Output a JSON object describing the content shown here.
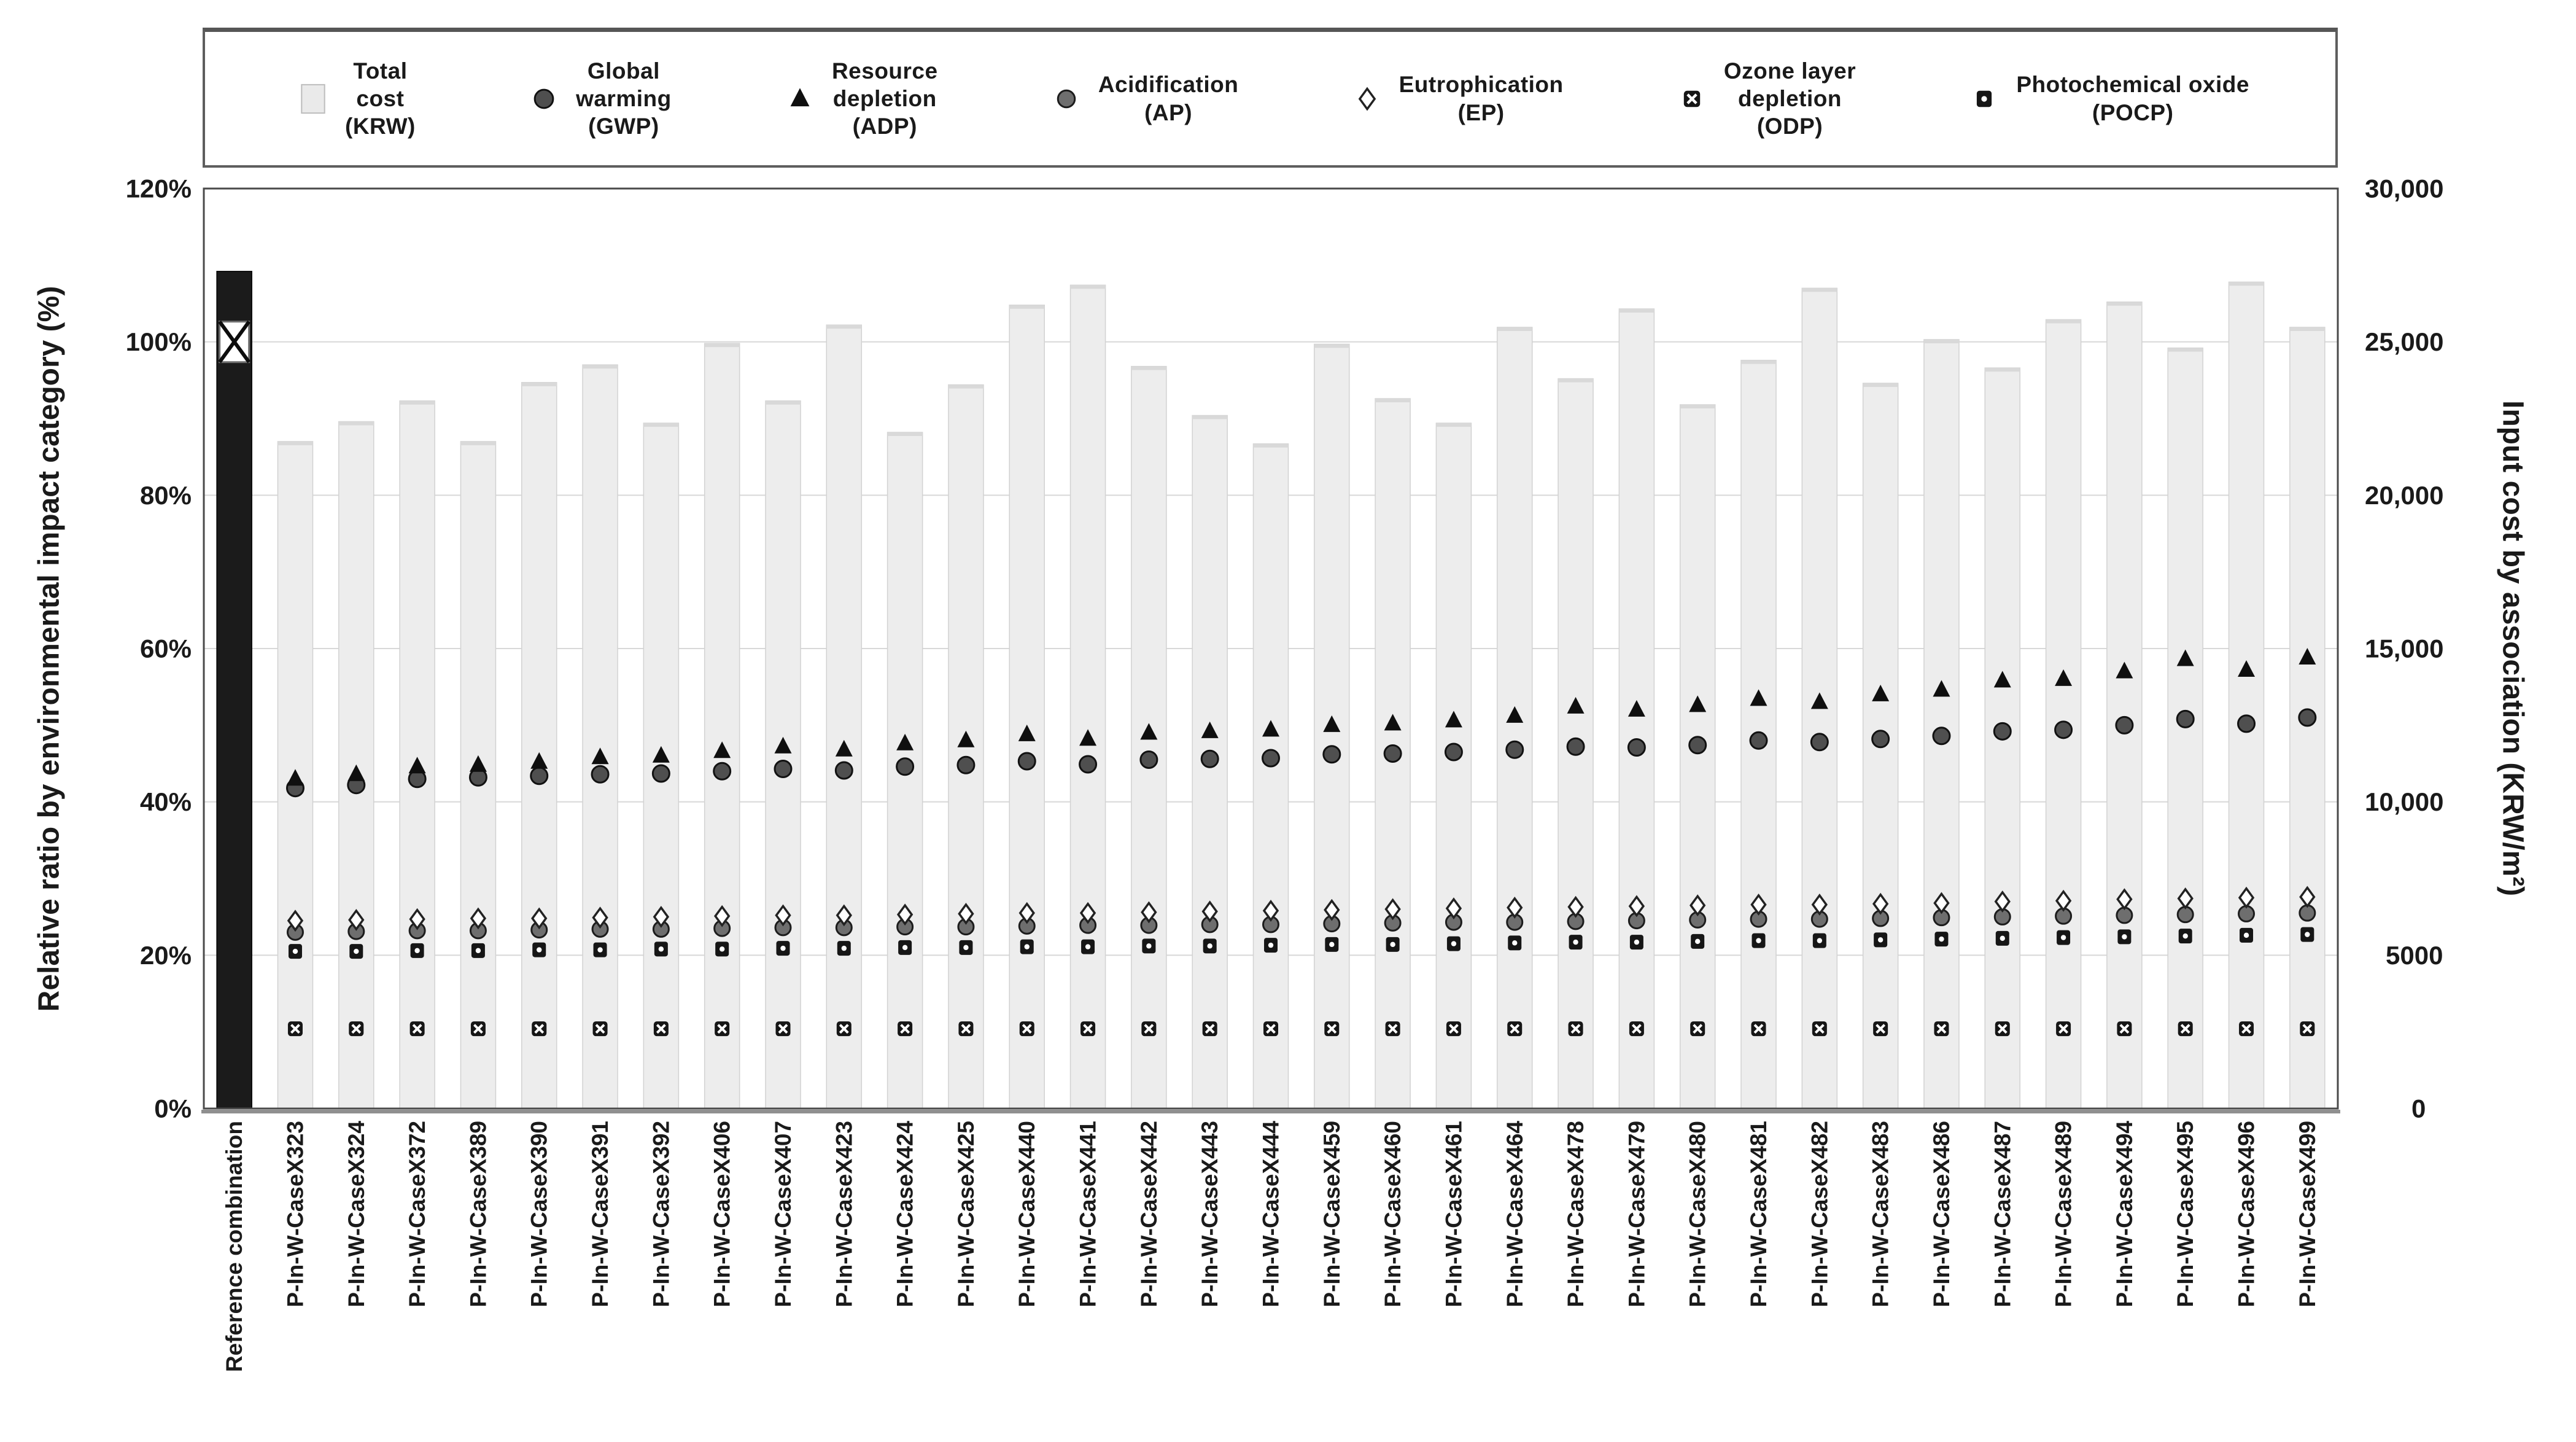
{
  "legend": {
    "items": [
      {
        "label": "Total\ncost\n(KRW)",
        "marker": "bar-swatch"
      },
      {
        "label": "Global\nwarming\n(GWP)",
        "marker": "gwp-circle"
      },
      {
        "label": "Resource\ndepletion\n(ADP)",
        "marker": "adp-triangle"
      },
      {
        "label": "Acidification\n(AP)",
        "marker": "ap-circle"
      },
      {
        "label": "Eutrophication\n(EP)",
        "marker": "ep-diamond"
      },
      {
        "label": "Ozone layer\ndepletion\n(ODP)",
        "marker": "odp-square-x"
      },
      {
        "label": "Photochemical oxide\n(POCP)",
        "marker": "pocp-square-dot"
      }
    ]
  },
  "chart_data": {
    "type": "bar",
    "subtype": "bar with overlaid scatter markers, dual axis",
    "left_axis": {
      "label": "Relative ratio by environmental impact category (%)",
      "ticks": [
        "0%",
        "20%",
        "40%",
        "60%",
        "80%",
        "100%",
        "120%"
      ],
      "tick_pcts": [
        0,
        20,
        40,
        60,
        80,
        100,
        120
      ],
      "range": [
        0,
        120
      ],
      "grid": true
    },
    "right_axis": {
      "label": "Input cost by association (KRW/m²)",
      "ticks": [
        "0",
        "5000",
        "10,000",
        "15,000",
        "20,000",
        "25,000",
        "30,000"
      ],
      "tick_pcts": [
        0,
        20,
        40,
        60,
        80,
        100,
        120
      ],
      "range": [
        0,
        30000
      ]
    },
    "categories": [
      "Reference combination",
      "P-In-W-CaseX323",
      "P-In-W-CaseX324",
      "P-In-W-CaseX372",
      "P-In-W-CaseX389",
      "P-In-W-CaseX390",
      "P-In-W-CaseX391",
      "P-In-W-CaseX392",
      "P-In-W-CaseX406",
      "P-In-W-CaseX407",
      "P-In-W-CaseX423",
      "P-In-W-CaseX424",
      "P-In-W-CaseX425",
      "P-In-W-CaseX440",
      "P-In-W-CaseX441",
      "P-In-W-CaseX442",
      "P-In-W-CaseX443",
      "P-In-W-CaseX444",
      "P-In-W-CaseX459",
      "P-In-W-CaseX460",
      "P-In-W-CaseX461",
      "P-In-W-CaseX464",
      "P-In-W-CaseX478",
      "P-In-W-CaseX479",
      "P-In-W-CaseX480",
      "P-In-W-CaseX481",
      "P-In-W-CaseX482",
      "P-In-W-CaseX483",
      "P-In-W-CaseX486",
      "P-In-W-CaseX487",
      "P-In-W-CaseX489",
      "P-In-W-CaseX494",
      "P-In-W-CaseX495",
      "P-In-W-CaseX496",
      "P-In-W-CaseX499"
    ],
    "series": [
      {
        "name": "Total cost (KRW)",
        "plot": "bar",
        "marker": "bar-swatch",
        "unit": "% of reference (left axis); right axis equivalent KRW/m² = % × 250",
        "values": [
          109.2,
          87,
          89.6,
          92.3,
          87,
          94.7,
          97,
          89.4,
          99.8,
          92.3,
          102.2,
          88.2,
          94.4,
          104.8,
          107.4,
          96.8,
          90.4,
          86.7,
          99.7,
          92.6,
          89.4,
          101.9,
          95.2,
          104.3,
          91.8,
          97.6,
          107,
          94.6,
          100.3,
          96.6,
          102.9,
          105.2,
          99.2,
          107.8,
          101.9
        ]
      },
      {
        "name": "Global warming (GWP)",
        "plot": "scatter",
        "marker": "gwp-circle",
        "unit": "%",
        "values": [
          100,
          41.8,
          42.2,
          43,
          43.2,
          43.4,
          43.6,
          43.7,
          44,
          44.3,
          44.1,
          44.6,
          44.8,
          45.3,
          44.9,
          45.5,
          45.6,
          45.7,
          46.2,
          46.3,
          46.5,
          46.8,
          47.2,
          47.1,
          47.4,
          48,
          47.8,
          48.2,
          48.6,
          49.2,
          49.4,
          50,
          50.8,
          50.2,
          51
        ]
      },
      {
        "name": "Resource depletion (ADP)",
        "plot": "scatter",
        "marker": "adp-triangle",
        "unit": "%",
        "values": [
          100,
          43,
          43.6,
          44.6,
          44.8,
          45.2,
          45.8,
          46,
          46.6,
          47.2,
          46.8,
          47.6,
          48,
          48.8,
          48.2,
          49,
          49.2,
          49.4,
          50,
          50.2,
          50.6,
          51.2,
          52.4,
          52,
          52.6,
          53.4,
          53,
          54,
          54.6,
          55.8,
          56,
          57,
          58.6,
          57.2,
          58.8
        ]
      },
      {
        "name": "Acidification (AP)",
        "plot": "scatter",
        "marker": "ap-circle",
        "unit": "%",
        "values": [
          100,
          23,
          23.1,
          23.2,
          23.2,
          23.3,
          23.4,
          23.4,
          23.5,
          23.6,
          23.6,
          23.7,
          23.7,
          23.8,
          23.9,
          23.9,
          24,
          24,
          24.1,
          24.2,
          24.3,
          24.3,
          24.4,
          24.5,
          24.6,
          24.7,
          24.7,
          24.8,
          24.9,
          25,
          25.1,
          25.2,
          25.3,
          25.4,
          25.5
        ]
      },
      {
        "name": "Eutrophication (EP)",
        "plot": "scatter",
        "marker": "ep-diamond",
        "unit": "%",
        "values": [
          100,
          24.5,
          24.6,
          24.7,
          24.8,
          24.8,
          24.9,
          25,
          25.1,
          25.2,
          25.2,
          25.3,
          25.4,
          25.5,
          25.5,
          25.6,
          25.7,
          25.8,
          25.9,
          26,
          26.1,
          26.2,
          26.3,
          26.4,
          26.5,
          26.6,
          26.6,
          26.7,
          26.8,
          27,
          27.1,
          27.3,
          27.4,
          27.5,
          27.6
        ]
      },
      {
        "name": "Ozone layer depletion (ODP)",
        "plot": "scatter",
        "marker": "odp-square-x",
        "unit": "%",
        "values": [
          100,
          10.4,
          10.4,
          10.4,
          10.4,
          10.4,
          10.4,
          10.4,
          10.4,
          10.4,
          10.4,
          10.4,
          10.4,
          10.4,
          10.4,
          10.4,
          10.4,
          10.4,
          10.4,
          10.4,
          10.4,
          10.4,
          10.4,
          10.4,
          10.4,
          10.4,
          10.4,
          10.4,
          10.4,
          10.4,
          10.4,
          10.4,
          10.4,
          10.4,
          10.4
        ]
      },
      {
        "name": "Photochemical oxide (POCP)",
        "plot": "scatter",
        "marker": "pocp-square-dot",
        "unit": "%",
        "values": [
          100,
          20.5,
          20.5,
          20.6,
          20.6,
          20.7,
          20.7,
          20.8,
          20.8,
          20.9,
          20.9,
          21,
          21,
          21.1,
          21.1,
          21.2,
          21.2,
          21.3,
          21.4,
          21.4,
          21.5,
          21.6,
          21.7,
          21.7,
          21.8,
          21.9,
          21.9,
          22,
          22.1,
          22.2,
          22.3,
          22.4,
          22.5,
          22.6,
          22.7
        ]
      }
    ],
    "reference_note": "Reference combination bar is black; all impact-category markers coincide at 100% on it",
    "colors": {
      "bar_fill": "#ededed",
      "bar_edge": "#d2d2d2",
      "reference_bar": "#1b1b1b",
      "gridline": "#d8d8d8",
      "frame": "#4a4a4a",
      "marker_dark": "#161616",
      "text": "#1a1a1a"
    },
    "legend_position": "top"
  }
}
